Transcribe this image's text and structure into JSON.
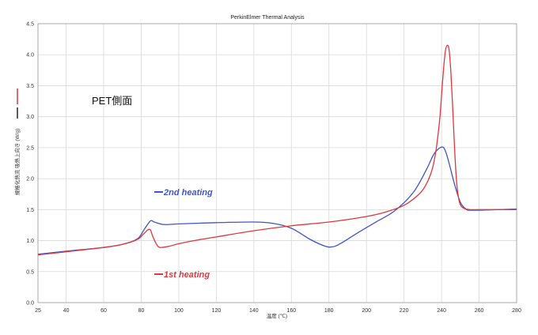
{
  "chart_data": {
    "type": "line",
    "title": "PerkinElmer Thermal Analysis",
    "xlabel": "温度 (℃)",
    "ylabel": "規格化熱流 吸熱上向き (W/g)",
    "xlim": [
      25,
      280
    ],
    "ylim": [
      0.0,
      4.5
    ],
    "x_ticks": [
      "25",
      "40",
      "60",
      "80",
      "100",
      "120",
      "140",
      "160",
      "180",
      "200",
      "220",
      "240",
      "260",
      "280"
    ],
    "y_ticks": [
      "0.0",
      "0.5",
      "1.0",
      "1.5",
      "2.0",
      "2.5",
      "3.0",
      "3.5",
      "4.0",
      "4.5"
    ],
    "grid": true,
    "annotation": "PET側面",
    "series": [
      {
        "name": "2nd heating",
        "color": "#4055c8",
        "x": [
          25,
          40,
          60,
          70,
          78,
          82,
          85,
          87,
          92,
          100,
          120,
          140,
          150,
          160,
          170,
          178,
          182,
          186,
          195,
          205,
          215,
          225,
          232,
          236,
          240,
          242,
          244,
          247,
          250,
          253,
          256,
          270,
          280
        ],
        "y": [
          0.78,
          0.83,
          0.89,
          0.94,
          1.03,
          1.2,
          1.32,
          1.3,
          1.26,
          1.27,
          1.29,
          1.3,
          1.28,
          1.2,
          1.02,
          0.91,
          0.9,
          0.95,
          1.12,
          1.3,
          1.48,
          1.78,
          2.15,
          2.4,
          2.51,
          2.45,
          2.25,
          1.9,
          1.62,
          1.51,
          1.49,
          1.5,
          1.51
        ]
      },
      {
        "name": "1st heating",
        "color": "#e0363c",
        "x": [
          25,
          40,
          60,
          70,
          78,
          81,
          83,
          84,
          85,
          86,
          88,
          90,
          95,
          100,
          110,
          120,
          140,
          160,
          180,
          200,
          210,
          220,
          228,
          232,
          235,
          237,
          239,
          240,
          241,
          242,
          243,
          244,
          245,
          246,
          247,
          248,
          249,
          250,
          252,
          255,
          260,
          270,
          280
        ],
        "y": [
          0.77,
          0.82,
          0.89,
          0.94,
          1.02,
          1.1,
          1.16,
          1.18,
          1.17,
          1.08,
          0.95,
          0.89,
          0.91,
          0.95,
          1.01,
          1.06,
          1.16,
          1.24,
          1.3,
          1.39,
          1.46,
          1.57,
          1.75,
          1.92,
          2.15,
          2.45,
          2.95,
          3.35,
          3.75,
          4.05,
          4.15,
          4.08,
          3.7,
          3.1,
          2.45,
          1.95,
          1.7,
          1.58,
          1.52,
          1.5,
          1.5,
          1.5,
          1.5
        ]
      }
    ]
  }
}
